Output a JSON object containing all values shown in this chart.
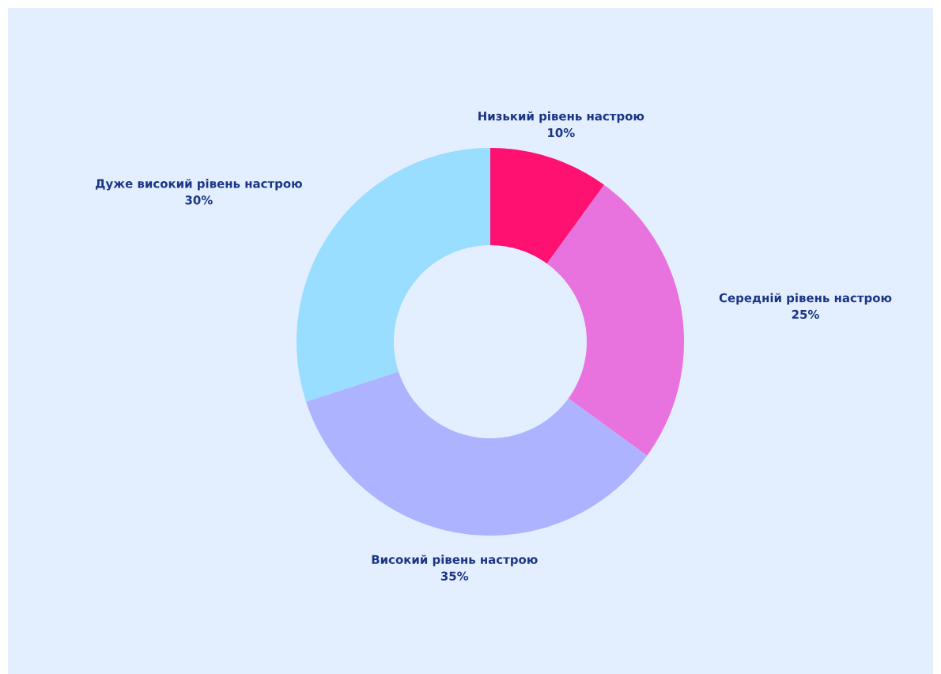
{
  "chart_data": {
    "type": "donut",
    "categories": [
      "Низький рівень настрою",
      "Середній рівень настрою",
      "Високий рівень настрою",
      "Дуже високий рівень настрою"
    ],
    "values": [
      10,
      25,
      35,
      30
    ],
    "colors": [
      "#ff1172",
      "#e873de",
      "#adb3ff",
      "#99ddff"
    ],
    "value_labels": [
      "10%",
      "25%",
      "35%",
      "30%"
    ]
  }
}
